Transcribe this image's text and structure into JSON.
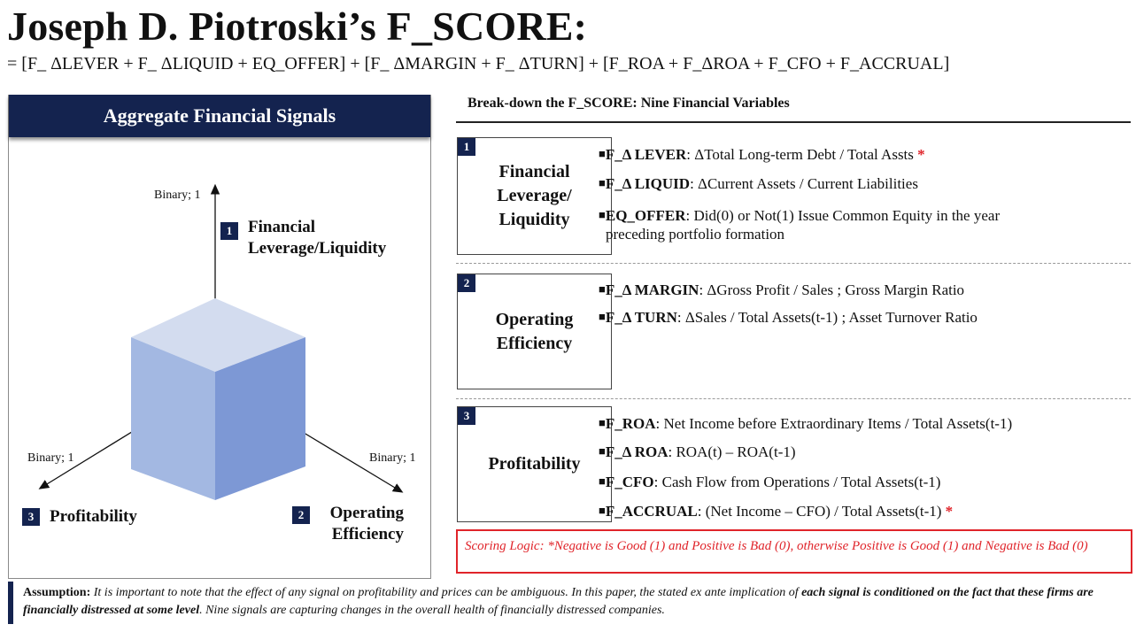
{
  "title": "Joseph D. Piotroski’s F_SCORE:",
  "formula": "=  [F_ ΔLEVER + F_ ΔLIQUID + EQ_OFFER] + [F_ ΔMARGIN + F_ ΔTURN] + [F_ROA + F_ΔROA + F_CFO + F_ACCRUAL]",
  "left_panel": {
    "header": "Aggregate Financial Signals",
    "axes": {
      "top_label": "Binary; 1",
      "left_label": "Binary; 1",
      "right_label": "Binary; 1"
    },
    "dimensions": [
      {
        "number": "1",
        "line1": "Financial",
        "line2": "Leverage/Liquidity"
      },
      {
        "number": "2",
        "line1": "Operating",
        "line2": "Efficiency"
      },
      {
        "number": "3",
        "line1": "Profitability",
        "line2": ""
      }
    ],
    "colors": {
      "cube_top": "#d3dcef",
      "cube_left": "#a3b8e2",
      "cube_right": "#7d98d5",
      "header": "#14234f"
    }
  },
  "breakdown": {
    "title": "Break-down the F_SCORE: Nine Financial Variables",
    "categories": [
      {
        "number": "1",
        "name_lines": [
          "Financial",
          "Leverage/",
          "Liquidity"
        ],
        "items": [
          {
            "key": "F_Δ LEVER",
            "desc": ": ΔTotal Long-term Debt / Total Assts ",
            "star": "*"
          },
          {
            "key": "F_Δ LIQUID",
            "desc": ": ΔCurrent Assets / Current Liabilities",
            "star": ""
          },
          {
            "key": "EQ_OFFER",
            "desc": ": Did(0) or Not(1) Issue Common Equity in the year",
            "star": "",
            "cont": "preceding portfolio formation"
          }
        ]
      },
      {
        "number": "2",
        "name_lines": [
          "Operating",
          "Efficiency"
        ],
        "items": [
          {
            "key": "F_Δ MARGIN",
            "desc": ": ΔGross Profit / Sales ; Gross Margin Ratio",
            "star": ""
          },
          {
            "key": "F_Δ TURN",
            "desc": ": ΔSales / Total Assets(t-1) ; Asset Turnover Ratio",
            "star": ""
          }
        ]
      },
      {
        "number": "3",
        "name_lines": [
          "Profitability"
        ],
        "items": [
          {
            "key": "F_ROA",
            "desc": ": Net Income before Extraordinary Items / Total Assets(t-1)",
            "star": ""
          },
          {
            "key": "F_Δ ROA",
            "desc": ": ROA(t) – ROA(t-1)",
            "star": ""
          },
          {
            "key": "F_CFO",
            "desc": ": Cash Flow from Operations / Total Assets(t-1)",
            "star": ""
          },
          {
            "key": "F_ACCRUAL",
            "desc": ": (Net Income – CFO) / Total Assets(t-1) ",
            "star": "*"
          }
        ]
      }
    ],
    "scoring_logic": "Scoring Logic: *Negative is Good (1) and Positive is Bad (0), otherwise Positive is Good (1) and Negative is Bad (0)"
  },
  "assumption": {
    "label": "Assumption:",
    "text1": " It is important to note that the effect of any signal on profitability and prices can be ambiguous. In this paper, the stated ex ante implication of ",
    "bold": "each signal is conditioned on the fact that these firms are financially distressed at some level",
    "text2": ". Nine signals are capturing changes in the overall health of financially distressed companies."
  },
  "colors": {
    "accent": "#14234f",
    "star": "#e0242a"
  }
}
